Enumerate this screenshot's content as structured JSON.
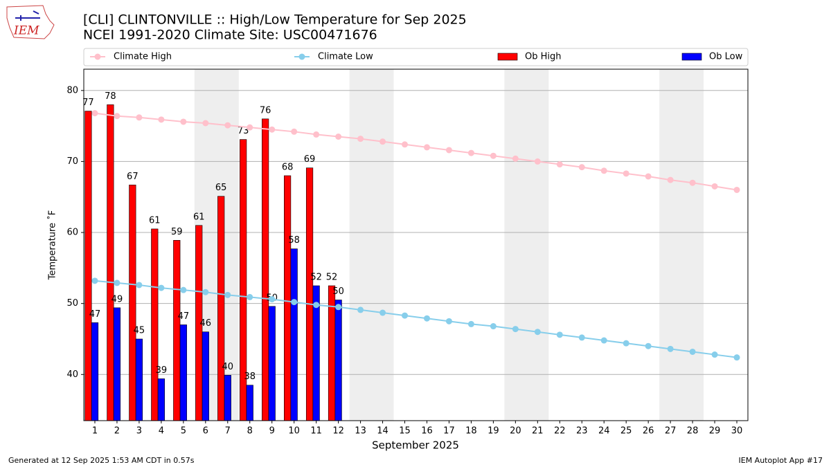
{
  "chart_data": {
    "type": "bar_line",
    "title": "[CLI] CLINTONVILLE :: High/Low Temperature for Sep 2025",
    "subtitle": "NCEI 1991-2020 Climate Site: USC00471676",
    "logo_text": "IEM",
    "xlabel": "September 2025",
    "ylabel": "Temperature ˚F",
    "footer_left": "Generated at 12 Sep 2025 1:53 AM CDT in 0.57s",
    "footer_right": "IEM Autoplot App #17",
    "x": [
      1,
      2,
      3,
      4,
      5,
      6,
      7,
      8,
      9,
      10,
      11,
      12,
      13,
      14,
      15,
      16,
      17,
      18,
      19,
      20,
      21,
      22,
      23,
      24,
      25,
      26,
      27,
      28,
      29,
      30
    ],
    "xlim": [
      0.5,
      30.5
    ],
    "xticks": [
      1,
      2,
      3,
      4,
      5,
      6,
      7,
      8,
      9,
      10,
      11,
      12,
      13,
      14,
      15,
      16,
      17,
      18,
      19,
      20,
      21,
      22,
      23,
      24,
      25,
      26,
      27,
      28,
      29,
      30
    ],
    "ylim": [
      33.5,
      83
    ],
    "yticks": [
      40,
      50,
      60,
      70,
      80
    ],
    "grid": true,
    "shaded_ranges": [
      [
        6,
        7
      ],
      [
        13,
        14
      ],
      [
        20,
        21
      ],
      [
        27,
        28
      ]
    ],
    "shade_color": "#eeeeee",
    "series": [
      {
        "name": "Climate High",
        "kind": "line",
        "color": "pink",
        "values": [
          76.8,
          76.4,
          76.2,
          75.9,
          75.6,
          75.4,
          75.1,
          74.8,
          74.5,
          74.2,
          73.8,
          73.5,
          73.2,
          72.8,
          72.4,
          72.0,
          71.6,
          71.2,
          70.8,
          70.4,
          70.0,
          69.6,
          69.2,
          68.7,
          68.3,
          67.9,
          67.4,
          67.0,
          66.5,
          66.0
        ]
      },
      {
        "name": "Climate Low",
        "kind": "line",
        "color": "skyblue",
        "values": [
          53.2,
          52.9,
          52.6,
          52.2,
          51.9,
          51.6,
          51.2,
          50.9,
          50.6,
          50.2,
          49.8,
          49.5,
          49.1,
          48.7,
          48.3,
          47.9,
          47.5,
          47.1,
          46.8,
          46.4,
          46.0,
          45.6,
          45.2,
          44.8,
          44.4,
          44.0,
          43.6,
          43.2,
          42.8,
          42.4
        ]
      },
      {
        "name": "Ob High",
        "kind": "bar",
        "color": "red",
        "values": [
          77.1,
          78,
          66.7,
          60.5,
          58.9,
          61,
          65.1,
          73.1,
          76,
          68,
          69.1,
          52.5,
          null,
          null,
          null,
          null,
          null,
          null,
          null,
          null,
          null,
          null,
          null,
          null,
          null,
          null,
          null,
          null,
          null,
          null
        ],
        "value_labels": [
          "77",
          "78",
          "67",
          "61",
          "59",
          "61",
          "65",
          "73",
          "76",
          "68",
          "69",
          "52",
          null,
          null,
          null,
          null,
          null,
          null,
          null,
          null,
          null,
          null,
          null,
          null,
          null,
          null,
          null,
          null,
          null,
          null
        ]
      },
      {
        "name": "Ob Low",
        "kind": "bar",
        "color": "blue",
        "values": [
          47.3,
          49.4,
          45,
          39.4,
          47,
          46,
          39.9,
          38.5,
          49.6,
          57.7,
          52.5,
          50.5,
          null,
          null,
          null,
          null,
          null,
          null,
          null,
          null,
          null,
          null,
          null,
          null,
          null,
          null,
          null,
          null,
          null,
          null
        ],
        "value_labels": [
          "47",
          "49",
          "45",
          "39",
          "47",
          "46",
          "40",
          "38",
          "50",
          "58",
          "52",
          "50",
          null,
          null,
          null,
          null,
          null,
          null,
          null,
          null,
          null,
          null,
          null,
          null,
          null,
          null,
          null,
          null,
          null,
          null
        ]
      }
    ]
  }
}
